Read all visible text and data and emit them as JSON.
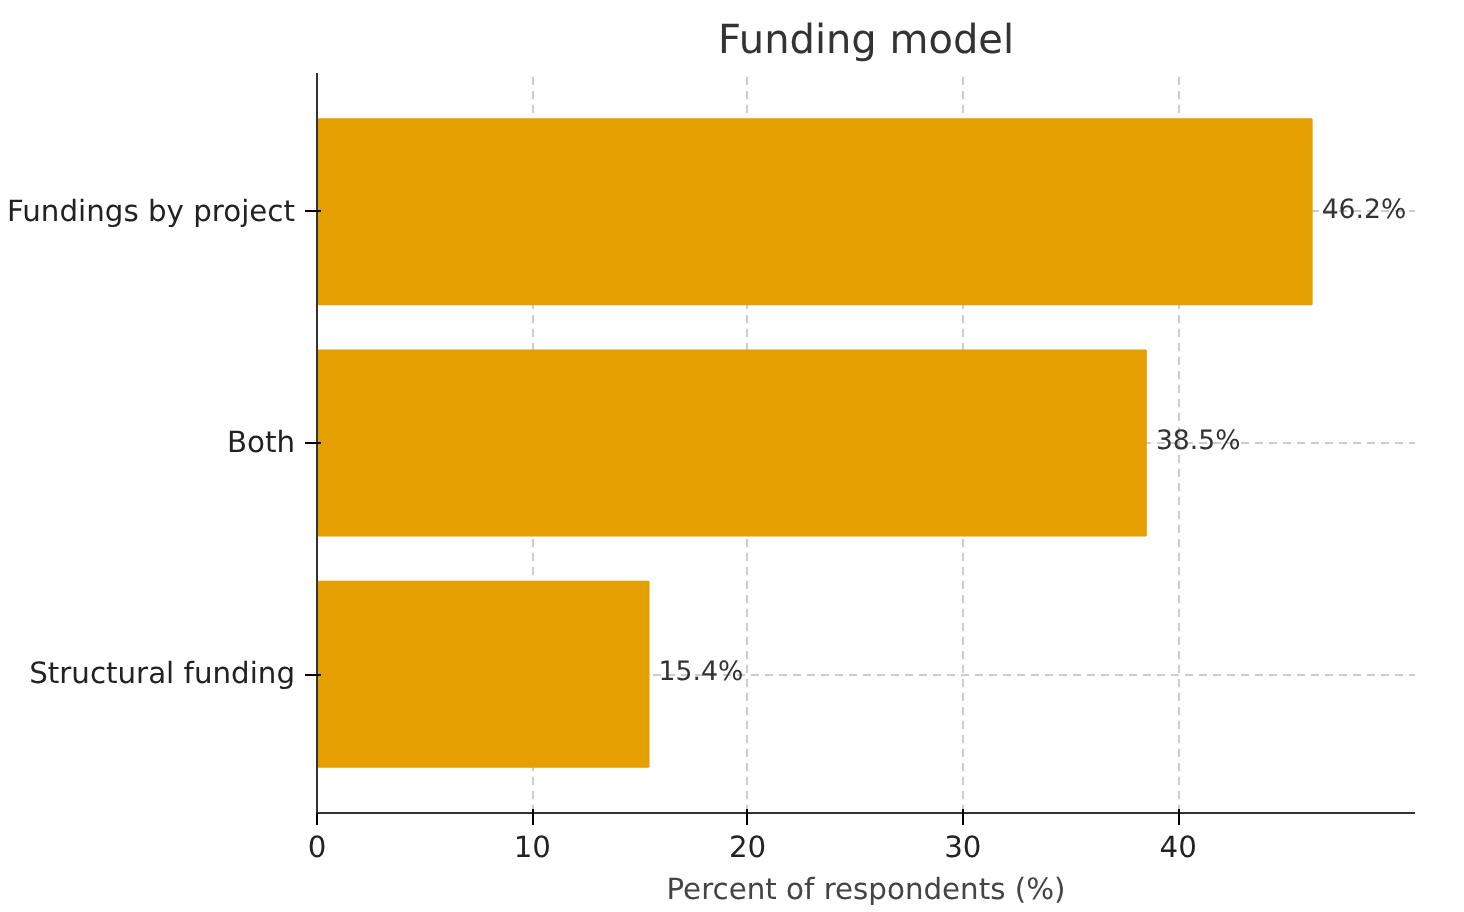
{
  "chart_data": {
    "type": "bar",
    "orientation": "horizontal",
    "title": "Funding model",
    "xlabel": "Percent of respondents (%)",
    "categories": [
      "Fundings by project",
      "Both",
      "Structural funding"
    ],
    "values": [
      46.2,
      38.5,
      15.4
    ],
    "value_labels": [
      "46.2%",
      "38.5%",
      "15.4%"
    ],
    "color": "#e69f00",
    "xlim": [
      0,
      51
    ],
    "xticks": [
      0,
      10,
      20,
      30,
      40
    ],
    "grid": true
  }
}
